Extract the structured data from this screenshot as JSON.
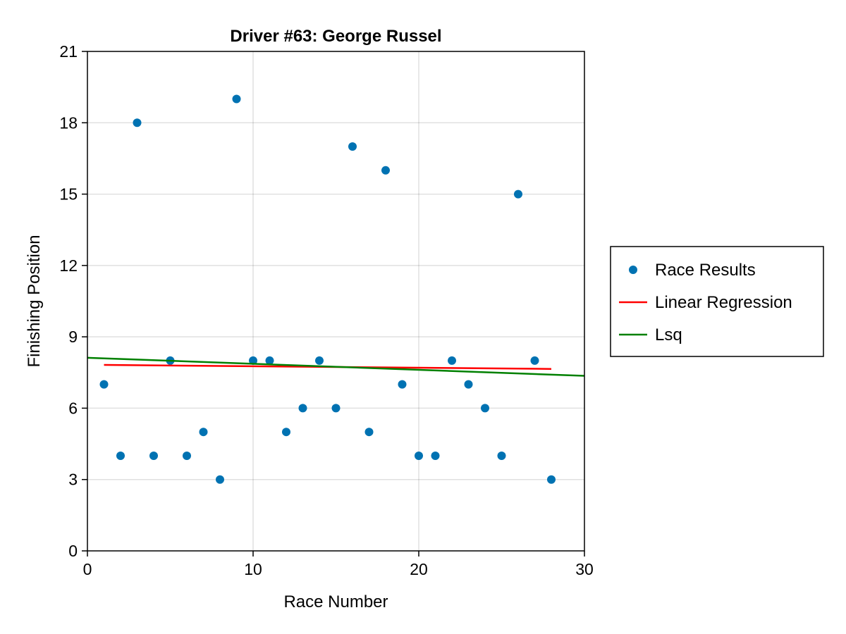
{
  "chart_data": {
    "type": "scatter",
    "title": "Driver #63: George Russel",
    "xlabel": "Race Number",
    "ylabel": "Finishing Position",
    "xlim": [
      0,
      30
    ],
    "ylim": [
      0,
      21
    ],
    "xticks": [
      "0",
      "10",
      "20",
      "30"
    ],
    "yticks": [
      "0",
      "3",
      "6",
      "9",
      "12",
      "15",
      "18",
      "21"
    ],
    "grid": true,
    "legend_position": "right",
    "series": [
      {
        "name": "Race Results",
        "kind": "scatter",
        "color": "#0072B2",
        "x": [
          1,
          2,
          3,
          4,
          5,
          6,
          7,
          8,
          9,
          10,
          11,
          12,
          13,
          14,
          15,
          16,
          17,
          18,
          19,
          20,
          21,
          22,
          23,
          24,
          25,
          26,
          27,
          28
        ],
        "y": [
          7,
          4,
          18,
          4,
          8,
          4,
          5,
          3,
          19,
          8,
          8,
          5,
          6,
          8,
          6,
          17,
          5,
          16,
          7,
          4,
          4,
          8,
          7,
          6,
          4,
          15,
          8,
          3
        ]
      },
      {
        "name": "Linear Regression",
        "kind": "line",
        "color": "#ff0000",
        "x": [
          1,
          28
        ],
        "y": [
          7.82,
          7.65
        ]
      },
      {
        "name": "Lsq",
        "kind": "line",
        "color": "#008000",
        "x": [
          0,
          30
        ],
        "y": [
          8.12,
          7.36
        ]
      }
    ]
  }
}
